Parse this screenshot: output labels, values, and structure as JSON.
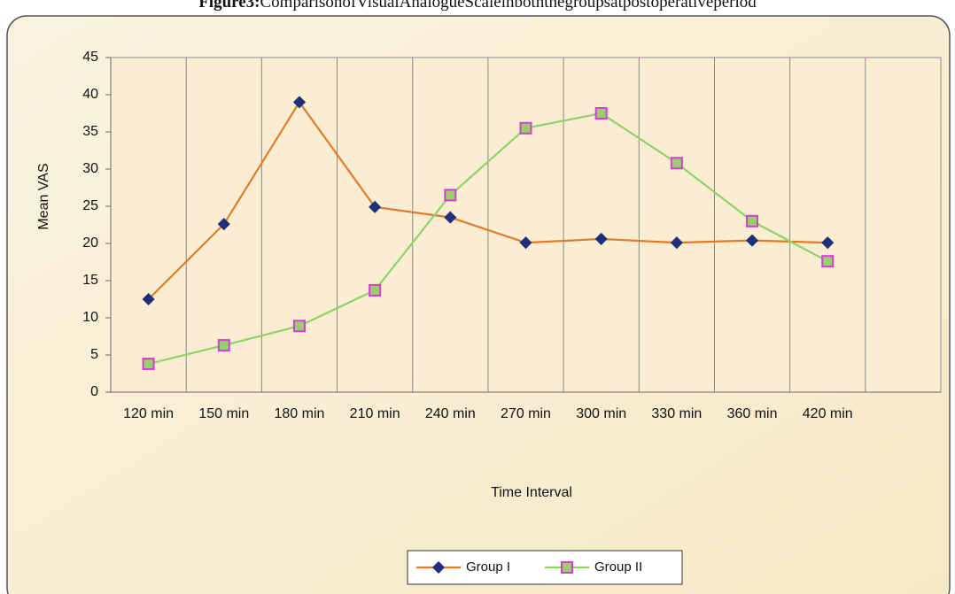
{
  "chart_data": {
    "type": "line",
    "figure_label": "Figure3:",
    "title": "ComparisonofVisualAnalogueScaleinboththegroupsatpostoperativeperiod",
    "x_label": "Time Interval",
    "y_label": "Mean VAS",
    "categories": [
      "120 min",
      "150 min",
      "180 min",
      "210 min",
      "240 min",
      "270 min",
      "300 min",
      "330 min",
      "360 min",
      "420 min",
      null
    ],
    "series": [
      {
        "name": "Group I",
        "color": "#e07b2a",
        "marker": "diamond",
        "marker_fill": "#1f2f7a",
        "marker_edge": "#1f2f7a",
        "values": [
          12.5,
          22.6,
          39,
          24.9,
          23.5,
          20.1,
          20.6,
          20.1,
          20.4,
          20.1,
          null
        ]
      },
      {
        "name": "Group II",
        "color": "#8fd16b",
        "marker": "square",
        "marker_fill": "#9acd6b",
        "marker_edge": "#d63cd6",
        "values": [
          3.8,
          6.3,
          8.9,
          13.7,
          26.5,
          35.5,
          37.5,
          30.8,
          23,
          17.6,
          null
        ]
      }
    ],
    "ylim": [
      0,
      45
    ],
    "yticks": [
      0,
      5,
      10,
      15,
      20,
      25,
      30,
      35,
      40,
      45
    ],
    "legend": "bottom"
  }
}
